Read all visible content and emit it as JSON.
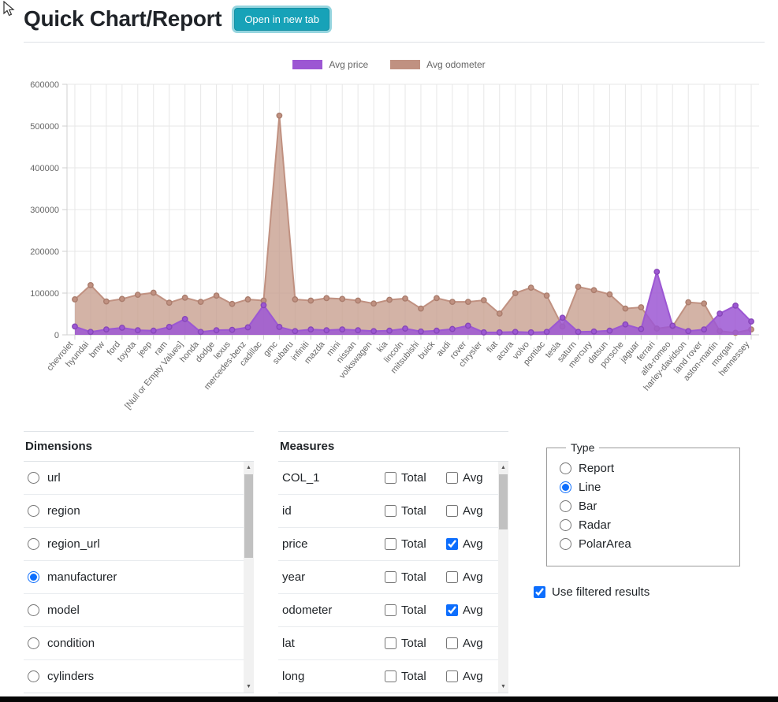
{
  "header": {
    "title": "Quick Chart/Report",
    "open_button": "Open in new tab"
  },
  "chart_data": {
    "type": "area",
    "title": "",
    "legend_position": "top",
    "grid": true,
    "x_label_rotation": -50,
    "ylim": [
      0,
      600000
    ],
    "ytick_step": 100000,
    "categories": [
      "chevrolet",
      "hyundai",
      "bmw",
      "ford",
      "toyota",
      "jeep",
      "ram",
      "[Null or Empty Values]",
      "honda",
      "dodge",
      "lexus",
      "mercedes-benz",
      "cadillac",
      "gmc",
      "subaru",
      "infiniti",
      "mazda",
      "mini",
      "nissan",
      "volkswagen",
      "kia",
      "lincoln",
      "mitsubishi",
      "buick",
      "audi",
      "rover",
      "chrysler",
      "fiat",
      "acura",
      "volvo",
      "pontiac",
      "tesla",
      "saturn",
      "mercury",
      "datsun",
      "porsche",
      "jaguar",
      "ferrari",
      "alfa-romeo",
      "harley-davidson",
      "land rover",
      "aston-martin",
      "morgan",
      "hennessey"
    ],
    "series": [
      {
        "name": "Avg price",
        "color": "#9c57d3",
        "marker_stroke": "#8746b8",
        "fill": "rgba(156,87,211,0.85)",
        "values": [
          20000,
          7000,
          13000,
          17000,
          11000,
          10000,
          19000,
          38000,
          7000,
          11000,
          12000,
          18000,
          71000,
          19000,
          9000,
          13000,
          11000,
          13000,
          11000,
          9000,
          10000,
          15000,
          8000,
          10000,
          14000,
          22000,
          6000,
          6000,
          7000,
          6000,
          7000,
          41000,
          7000,
          8000,
          10000,
          25000,
          14000,
          151000,
          22000,
          9000,
          13000,
          51000,
          70000,
          32000
        ]
      },
      {
        "name": "Avg odometer",
        "color": "#c09181",
        "marker_stroke": "#aa7d6d",
        "fill": "rgba(199,157,141,0.78)",
        "values": [
          85000,
          119000,
          80000,
          86000,
          96000,
          101000,
          77000,
          89000,
          79000,
          94000,
          74000,
          85000,
          82000,
          525000,
          85000,
          82000,
          88000,
          86000,
          82000,
          75000,
          84000,
          87000,
          63000,
          88000,
          79000,
          79000,
          83000,
          51000,
          100000,
          113000,
          94000,
          20000,
          115000,
          107000,
          97000,
          63000,
          66000,
          15000,
          20000,
          78000,
          75000,
          9000,
          5000,
          13000
        ]
      }
    ],
    "colors": {
      "grid": "#e7e7e7",
      "axis": "#d2d2d2",
      "tick_text": "#666666"
    }
  },
  "dimensions": {
    "title": "Dimensions",
    "items": [
      {
        "label": "url",
        "selected": false
      },
      {
        "label": "region",
        "selected": false
      },
      {
        "label": "region_url",
        "selected": false
      },
      {
        "label": "manufacturer",
        "selected": true
      },
      {
        "label": "model",
        "selected": false
      },
      {
        "label": "condition",
        "selected": false
      },
      {
        "label": "cylinders",
        "selected": false
      }
    ],
    "scrollbar": {
      "thumb_top": 16,
      "thumb_height": 106
    }
  },
  "measures": {
    "title": "Measures",
    "total_label": "Total",
    "avg_label": "Avg",
    "rows": [
      {
        "label": "COL_1",
        "total": false,
        "avg": false
      },
      {
        "label": "id",
        "total": false,
        "avg": false
      },
      {
        "label": "price",
        "total": false,
        "avg": true
      },
      {
        "label": "year",
        "total": false,
        "avg": false
      },
      {
        "label": "odometer",
        "total": false,
        "avg": true
      },
      {
        "label": "lat",
        "total": false,
        "avg": false
      },
      {
        "label": "long",
        "total": false,
        "avg": false
      }
    ],
    "scrollbar": {
      "thumb_top": 16,
      "thumb_height": 70
    }
  },
  "type_box": {
    "legend": "Type",
    "options": [
      {
        "label": "Report",
        "selected": false
      },
      {
        "label": "Line",
        "selected": true
      },
      {
        "label": "Bar",
        "selected": false
      },
      {
        "label": "Radar",
        "selected": false
      },
      {
        "label": "PolarArea",
        "selected": false
      }
    ]
  },
  "filter": {
    "label": "Use filtered results",
    "checked": true
  },
  "colors": {
    "accent_teal": "#17a2b8",
    "accent_blue": "#0d6efd"
  }
}
